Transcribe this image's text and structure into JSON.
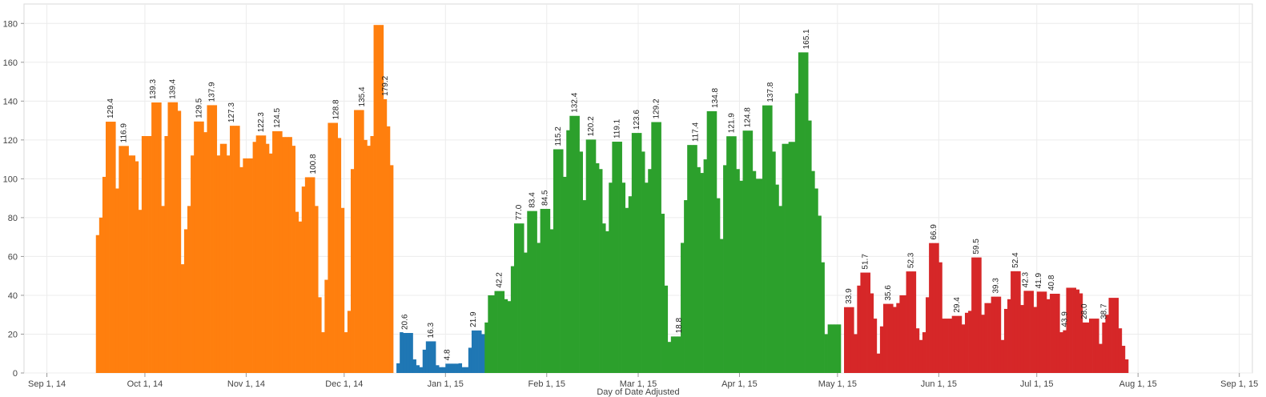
{
  "chart_data": {
    "type": "bar",
    "title": "",
    "xlabel": "Day of Date Adjusted",
    "ylabel": "",
    "ylim": [
      0,
      190
    ],
    "y_ticks": [
      0,
      20,
      40,
      60,
      80,
      100,
      120,
      140,
      160,
      180
    ],
    "x_ticks": [
      "Sep 1, 14",
      "Oct 1, 14",
      "Nov 1, 14",
      "Dec 1, 14",
      "Jan 1, 15",
      "Feb 1, 15",
      "Mar 1, 15",
      "Apr 1, 15",
      "May 1, 15",
      "Jun 1, 15",
      "Jul 1, 15",
      "Aug 1, 15",
      "Sep 1, 15"
    ],
    "x_range": [
      "2014-08-25",
      "2015-09-05"
    ],
    "grid": true,
    "legend": "none",
    "colors": {
      "orange": "#ff7f0e",
      "blue": "#1f77b4",
      "green": "#2ca02c",
      "red": "#d62728"
    },
    "series": [
      {
        "color_key": "orange",
        "start_date": "2014-09-16",
        "values": [
          71,
          80,
          101,
          129.4,
          129.4,
          129.4,
          95,
          116.9,
          116.9,
          116.9,
          112,
          112,
          109,
          84,
          122,
          122,
          122,
          139.3,
          139.3,
          139.3,
          86,
          122,
          139.4,
          139.4,
          139.4,
          135,
          56,
          74,
          86,
          112,
          129.5,
          129.5,
          129.5,
          124,
          137.9,
          137.9,
          137.9,
          112,
          118,
          118,
          112,
          127.3,
          127.3,
          127.3,
          106,
          110.5,
          110.5,
          110.5,
          119,
          122.3,
          122.3,
          122.3,
          118,
          113,
          124.5,
          124.5,
          124.5,
          121.5,
          121.5,
          121.5,
          117,
          83,
          78,
          96,
          100.8,
          100.8,
          100.8,
          86,
          39,
          21,
          48,
          128.8,
          128.8,
          128.8,
          121,
          85,
          21,
          32,
          105,
          135.4,
          135.4,
          135.4,
          120,
          117,
          122,
          179.2,
          179.2,
          179.2,
          141,
          127,
          107
        ],
        "labels": [
          {
            "date": "2014-09-20",
            "text": "129.4"
          },
          {
            "date": "2014-09-24",
            "text": "116.9"
          },
          {
            "date": "2014-10-03",
            "text": "139.3"
          },
          {
            "date": "2014-10-09",
            "text": "139.4"
          },
          {
            "date": "2014-10-17",
            "text": "129.5"
          },
          {
            "date": "2014-10-21",
            "text": "137.9"
          },
          {
            "date": "2014-10-27",
            "text": "127.3"
          },
          {
            "date": "2014-11-05",
            "text": "122.3"
          },
          {
            "date": "2014-11-10",
            "text": "124.5"
          },
          {
            "date": "2014-11-21",
            "text": "100.8"
          },
          {
            "date": "2014-11-28",
            "text": "128.8"
          },
          {
            "date": "2014-12-06",
            "text": "135.4"
          },
          {
            "date": "2014-12-13",
            "text": "179.2"
          }
        ]
      },
      {
        "color_key": "blue",
        "start_date": "2014-12-17",
        "values": [
          5,
          21,
          20.6,
          20.6,
          20.6,
          7,
          4,
          3,
          12,
          16.3,
          16.3,
          16.3,
          4,
          3,
          3,
          4.8,
          4.8,
          4.8,
          4.8,
          5,
          3,
          3,
          13,
          21.9,
          21.9,
          21.9,
          20
        ],
        "labels": [
          {
            "date": "2014-12-19",
            "text": "20.6"
          },
          {
            "date": "2014-12-27",
            "text": "16.3"
          },
          {
            "date": "2015-01-01",
            "text": "4.8"
          },
          {
            "date": "2015-01-09",
            "text": "21.9"
          }
        ]
      },
      {
        "color_key": "green",
        "start_date": "2015-01-13",
        "values": [
          26,
          40,
          40,
          42.2,
          42.2,
          42.2,
          38,
          37,
          55,
          77,
          77,
          77,
          62,
          83.4,
          83.4,
          83.4,
          67,
          84.5,
          84.5,
          84.5,
          74,
          115.2,
          115.2,
          115.2,
          101,
          125,
          132.4,
          132.4,
          132.4,
          114,
          89,
          120.2,
          120.2,
          120.2,
          108,
          105,
          77,
          73,
          98,
          119.1,
          119.1,
          119.1,
          98,
          85,
          91,
          123.6,
          123.6,
          123.6,
          114,
          98,
          105,
          129.2,
          129.2,
          129.2,
          82,
          45,
          16,
          18.8,
          18.8,
          18.8,
          67,
          89,
          117.4,
          117.4,
          117.4,
          106,
          103,
          110,
          134.8,
          134.8,
          134.8,
          90,
          69,
          107,
          121.9,
          121.9,
          121.9,
          105,
          99,
          124.8,
          124.8,
          124.8,
          104,
          100,
          100,
          137.8,
          137.8,
          137.8,
          114,
          97,
          86,
          118,
          118,
          119,
          119,
          144,
          165.1,
          165.1,
          165.1,
          130,
          104,
          95,
          81,
          57,
          20,
          25,
          25,
          25,
          25
        ],
        "labels": [
          {
            "date": "2015-01-17",
            "text": "42.2"
          },
          {
            "date": "2015-01-23",
            "text": "77.0"
          },
          {
            "date": "2015-01-27",
            "text": "83.4"
          },
          {
            "date": "2015-01-31",
            "text": "84.5"
          },
          {
            "date": "2015-02-04",
            "text": "115.2"
          },
          {
            "date": "2015-02-09",
            "text": "132.4"
          },
          {
            "date": "2015-02-14",
            "text": "120.2"
          },
          {
            "date": "2015-02-22",
            "text": "119.1"
          },
          {
            "date": "2015-02-28",
            "text": "123.6"
          },
          {
            "date": "2015-03-06",
            "text": "129.2"
          },
          {
            "date": "2015-03-13",
            "text": "18.8"
          },
          {
            "date": "2015-03-18",
            "text": "117.4"
          },
          {
            "date": "2015-03-24",
            "text": "134.8"
          },
          {
            "date": "2015-03-29",
            "text": "121.9"
          },
          {
            "date": "2015-04-03",
            "text": "124.8"
          },
          {
            "date": "2015-04-10",
            "text": "137.8"
          },
          {
            "date": "2015-04-21",
            "text": "165.1"
          }
        ]
      },
      {
        "color_key": "red",
        "start_date": "2015-05-03",
        "values": [
          33.9,
          33.9,
          33.9,
          20,
          45,
          51.7,
          51.7,
          51.7,
          41,
          28,
          10,
          24,
          35.6,
          35.6,
          35.6,
          34,
          36,
          40,
          40,
          52.3,
          52.3,
          52.3,
          23,
          17,
          21,
          39,
          66.9,
          66.9,
          66.9,
          57,
          28,
          28,
          28,
          29.4,
          29.4,
          29.4,
          25,
          31,
          32,
          59.5,
          59.5,
          59.5,
          30,
          36,
          36,
          39.3,
          39.3,
          39.3,
          17,
          33,
          38,
          52.4,
          52.4,
          52.4,
          35,
          42.3,
          42.3,
          42.3,
          34,
          41.9,
          41.9,
          41.9,
          38,
          40.8,
          40.8,
          40.8,
          21,
          22,
          43.9,
          43.9,
          43.9,
          43,
          41,
          26,
          26,
          28,
          28,
          28,
          15,
          26,
          30,
          38.7,
          38.7,
          38.7,
          23,
          14,
          7
        ],
        "labels": [
          {
            "date": "2015-05-04",
            "text": "33.9"
          },
          {
            "date": "2015-05-09",
            "text": "51.7"
          },
          {
            "date": "2015-05-16",
            "text": "35.6"
          },
          {
            "date": "2015-05-23",
            "text": "52.3"
          },
          {
            "date": "2015-05-30",
            "text": "66.9"
          },
          {
            "date": "2015-06-06",
            "text": "29.4"
          },
          {
            "date": "2015-06-12",
            "text": "59.5"
          },
          {
            "date": "2015-06-18",
            "text": "39.3"
          },
          {
            "date": "2015-06-24",
            "text": "52.4"
          },
          {
            "date": "2015-06-27",
            "text": "42.3"
          },
          {
            "date": "2015-07-01",
            "text": "41.9"
          },
          {
            "date": "2015-07-05",
            "text": "40.8"
          },
          {
            "date": "2015-07-09",
            "text": "43.9"
          },
          {
            "date": "2015-07-15",
            "text": "28.0"
          },
          {
            "date": "2015-07-21",
            "text": "38.7"
          }
        ]
      }
    ]
  }
}
